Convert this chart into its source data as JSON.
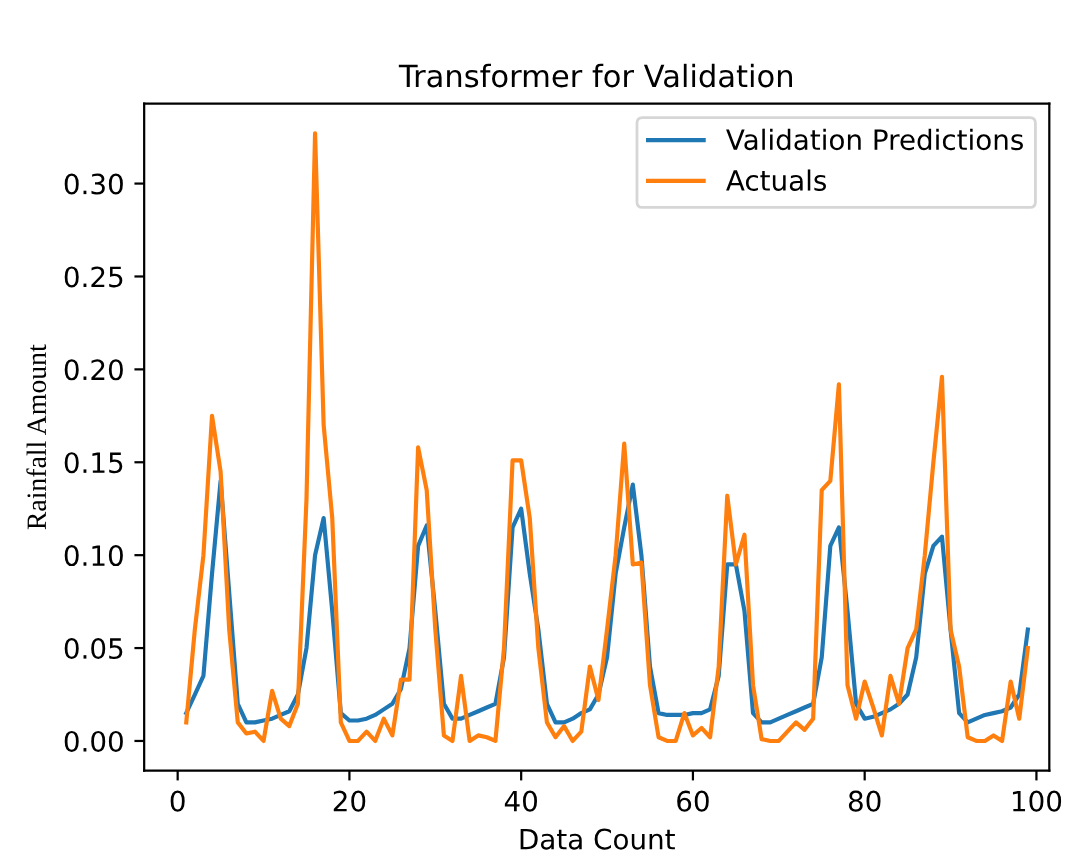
{
  "chart_data": {
    "type": "line",
    "title": "Transformer for Validation",
    "xlabel": "Data Count",
    "ylabel": "Rainfall Amount",
    "x": [
      1,
      2,
      3,
      4,
      5,
      6,
      7,
      8,
      9,
      10,
      11,
      12,
      13,
      14,
      15,
      16,
      17,
      18,
      19,
      20,
      21,
      22,
      23,
      24,
      25,
      26,
      27,
      28,
      29,
      30,
      31,
      32,
      33,
      34,
      35,
      36,
      37,
      38,
      39,
      40,
      41,
      42,
      43,
      44,
      45,
      46,
      47,
      48,
      49,
      50,
      51,
      52,
      53,
      54,
      55,
      56,
      57,
      58,
      59,
      60,
      61,
      62,
      63,
      64,
      65,
      66,
      67,
      68,
      69,
      70,
      71,
      72,
      73,
      74,
      75,
      76,
      77,
      78,
      79,
      80,
      81,
      82,
      83,
      84,
      85,
      86,
      87,
      88,
      89,
      90,
      91,
      92,
      93,
      94,
      95,
      96,
      97,
      98,
      99
    ],
    "series": [
      {
        "name": "Validation Predictions",
        "color": "#1f77b4",
        "values": [
          0.015,
          0.025,
          0.035,
          0.09,
          0.14,
          0.08,
          0.02,
          0.01,
          0.01,
          0.011,
          0.012,
          0.014,
          0.016,
          0.025,
          0.05,
          0.1,
          0.12,
          0.07,
          0.015,
          0.011,
          0.011,
          0.012,
          0.014,
          0.017,
          0.02,
          0.028,
          0.05,
          0.105,
          0.116,
          0.07,
          0.02,
          0.012,
          0.012,
          0.014,
          0.016,
          0.018,
          0.02,
          0.045,
          0.115,
          0.125,
          0.09,
          0.06,
          0.02,
          0.01,
          0.01,
          0.012,
          0.015,
          0.017,
          0.025,
          0.045,
          0.09,
          0.115,
          0.138,
          0.1,
          0.04,
          0.015,
          0.014,
          0.014,
          0.014,
          0.015,
          0.015,
          0.017,
          0.035,
          0.095,
          0.095,
          0.07,
          0.015,
          0.01,
          0.01,
          0.012,
          0.014,
          0.016,
          0.018,
          0.02,
          0.045,
          0.105,
          0.115,
          0.07,
          0.02,
          0.012,
          0.013,
          0.015,
          0.017,
          0.02,
          0.025,
          0.045,
          0.09,
          0.105,
          0.11,
          0.06,
          0.015,
          0.01,
          0.012,
          0.014,
          0.015,
          0.016,
          0.018,
          0.025,
          0.06
        ]
      },
      {
        "name": "Actuals",
        "color": "#ff7f0e",
        "values": [
          0.01,
          0.06,
          0.1,
          0.175,
          0.145,
          0.06,
          0.01,
          0.004,
          0.005,
          0.0,
          0.027,
          0.012,
          0.008,
          0.02,
          0.13,
          0.327,
          0.17,
          0.12,
          0.01,
          0.0,
          0.0,
          0.005,
          0.0,
          0.012,
          0.003,
          0.033,
          0.033,
          0.158,
          0.135,
          0.06,
          0.003,
          0.0,
          0.035,
          0.0,
          0.003,
          0.002,
          0.0,
          0.05,
          0.151,
          0.151,
          0.12,
          0.05,
          0.01,
          0.002,
          0.008,
          0.0,
          0.005,
          0.04,
          0.022,
          0.06,
          0.1,
          0.16,
          0.095,
          0.096,
          0.03,
          0.002,
          0.0,
          0.0,
          0.015,
          0.003,
          0.007,
          0.002,
          0.04,
          0.132,
          0.095,
          0.111,
          0.03,
          0.001,
          0.0,
          0.0,
          0.005,
          0.01,
          0.006,
          0.012,
          0.135,
          0.14,
          0.192,
          0.03,
          0.012,
          0.032,
          0.018,
          0.003,
          0.035,
          0.02,
          0.05,
          0.06,
          0.1,
          0.15,
          0.196,
          0.06,
          0.04,
          0.002,
          0.0,
          0.0,
          0.003,
          0.0,
          0.032,
          0.012,
          0.05
        ]
      }
    ],
    "xlim": [
      -3.9,
      101.5
    ],
    "xticks": [
      0,
      20,
      40,
      60,
      80,
      100
    ],
    "ylim": [
      -0.016,
      0.343
    ],
    "yticks": [
      {
        "value": 0,
        "label": "0.00"
      },
      {
        "value": 0.05,
        "label": "0.05"
      },
      {
        "value": 0.1,
        "label": "0.10"
      },
      {
        "value": 0.15,
        "label": "0.15"
      },
      {
        "value": 0.2,
        "label": "0.20"
      },
      {
        "value": 0.25,
        "label": "0.25"
      },
      {
        "value": 0.3,
        "label": "0.30"
      }
    ],
    "grid": false,
    "legend": "top right",
    "marker": "none",
    "line_style": "solid"
  }
}
